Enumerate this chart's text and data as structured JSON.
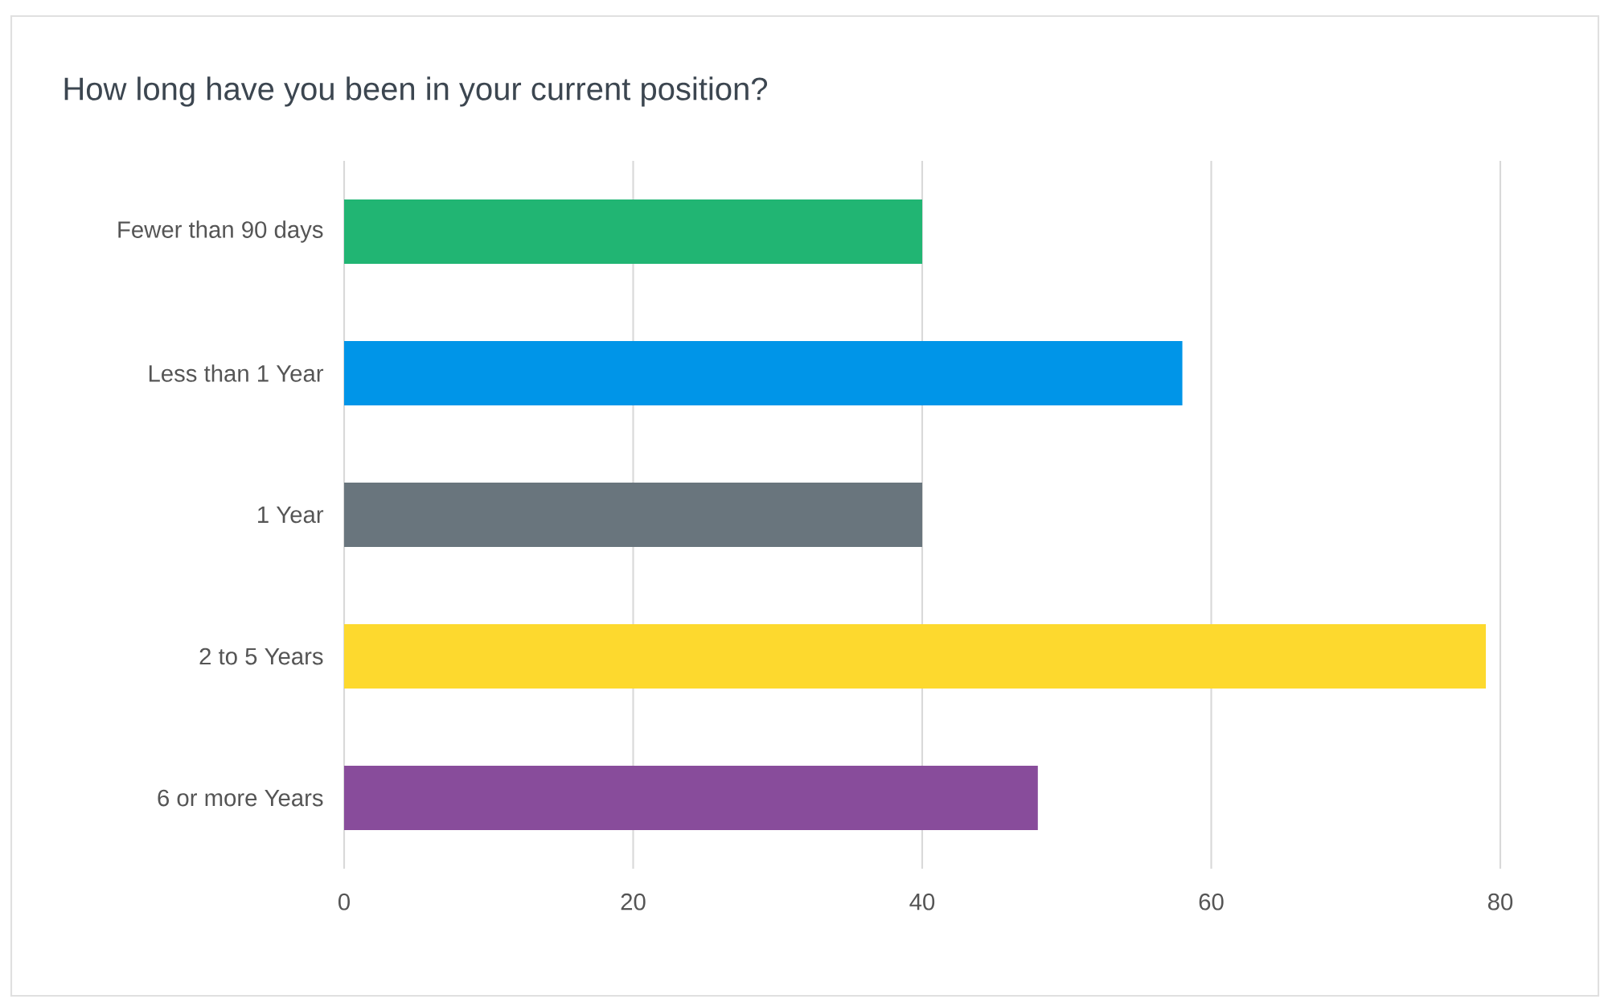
{
  "chart_data": {
    "type": "bar",
    "orientation": "horizontal",
    "title": "How long have you been in your current position?",
    "categories": [
      "Fewer than 90 days",
      "Less than 1 Year",
      "1 Year",
      "2 to 5 Years",
      "6 or more Years"
    ],
    "values": [
      40,
      58,
      40,
      79,
      48
    ],
    "colors": [
      "#21b573",
      "#0095e8",
      "#69757d",
      "#fdd92e",
      "#884c9b"
    ],
    "xlim": [
      0,
      80
    ],
    "xticks": [
      0,
      20,
      40,
      60,
      80
    ],
    "grid": "x"
  }
}
